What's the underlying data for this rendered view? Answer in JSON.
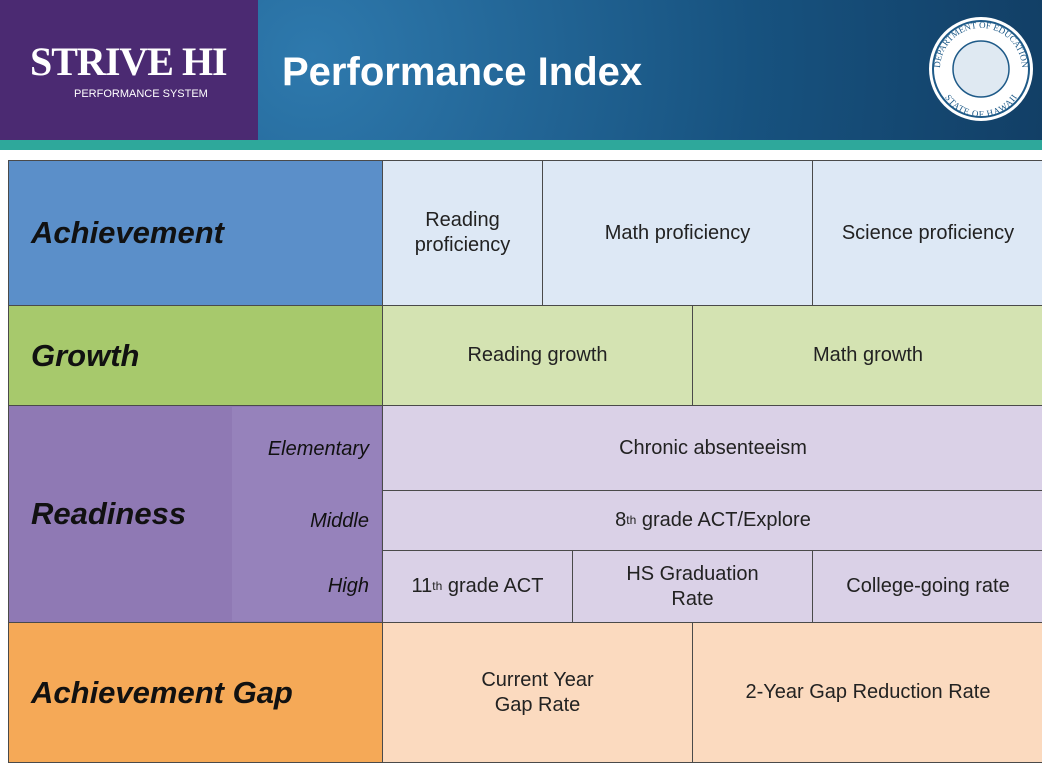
{
  "header": {
    "logo_title": "STRIVE HI",
    "logo_subtitle": "PERFORMANCE SYSTEM",
    "title": "Performance Index",
    "seal_top": "DEPARTMENT OF EDUCATION",
    "seal_bottom": "STATE OF HAWAII"
  },
  "rows": [
    {
      "label": "Achievement",
      "cells": [
        "Reading proficiency",
        "Math proficiency",
        "Science proficiency"
      ]
    },
    {
      "label": "Growth",
      "cells": [
        "Reading growth",
        "Math growth"
      ]
    },
    {
      "label": "Readiness",
      "levels": [
        {
          "level": "Elementary",
          "cells": [
            "Chronic absenteeism"
          ]
        },
        {
          "level": "Middle",
          "cells": [
            {
              "ordinal": "8",
              "suffix": "th",
              "rest": " grade ACT/Explore"
            }
          ]
        },
        {
          "level": "High",
          "cells": [
            {
              "ordinal": "11",
              "suffix": "th",
              "rest": " grade ACT"
            },
            "HS Graduation Rate",
            "College-going rate"
          ]
        }
      ]
    },
    {
      "label": "Achievement Gap",
      "cells": [
        "Current Year Gap Rate",
        "2-Year Gap Reduction Rate"
      ]
    }
  ]
}
